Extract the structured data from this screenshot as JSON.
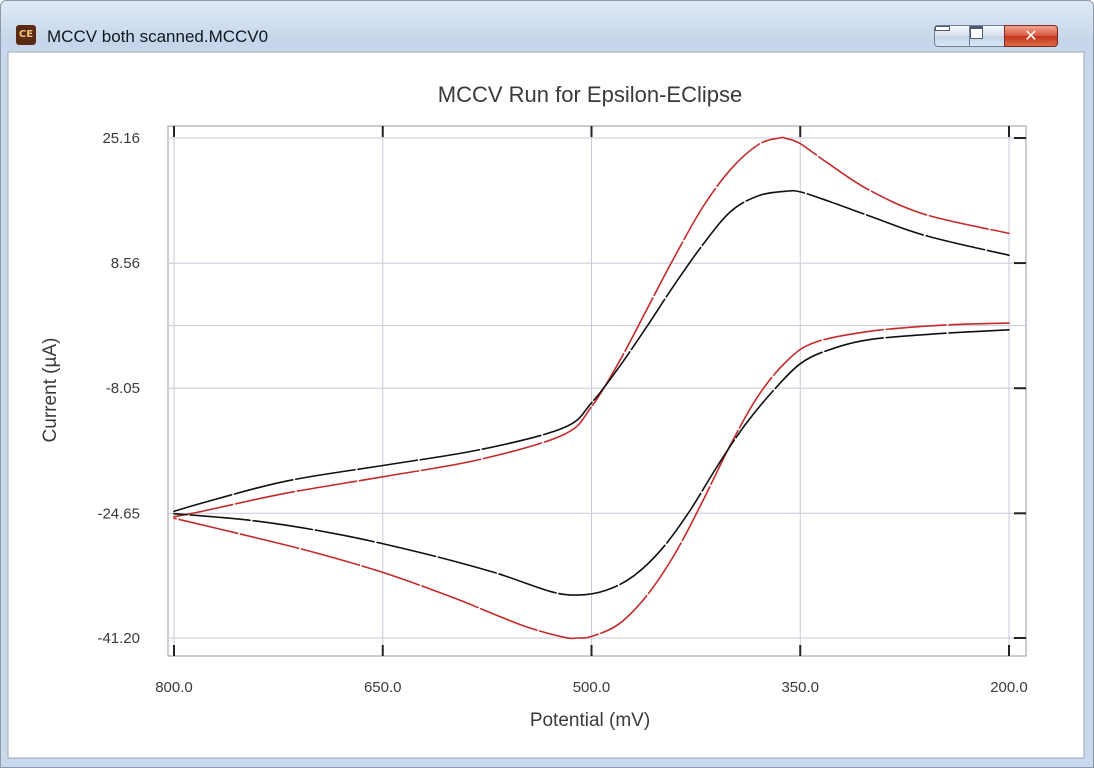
{
  "window": {
    "title": "MCCV  both scanned.MCCV0",
    "icon": "app-icon"
  },
  "chart_data": {
    "type": "line",
    "title": "MCCV Run for Epsilon-EClipse",
    "xlabel": "Potential (mV)",
    "ylabel": "Current (µA)",
    "xlim": [
      800,
      200
    ],
    "x_reversed": true,
    "ylim": [
      -41.2,
      25.16
    ],
    "xticks": [
      "800.0",
      "650.0",
      "500.0",
      "350.0",
      "200.0"
    ],
    "yticks": [
      "25.16",
      "8.56",
      "-8.05",
      "-24.65",
      "-41.20"
    ],
    "grid": true,
    "colors": {
      "red": "#c42a2a",
      "black": "#111111",
      "grid": "#c8c8d8"
    },
    "series": [
      {
        "color": "red",
        "forward": {
          "x": [
            800,
            780,
            720,
            650,
            580,
            520,
            500,
            480,
            460,
            440,
            420,
            400,
            380,
            365,
            360,
            350,
            330,
            300,
            260,
            200
          ],
          "y": [
            -25.1,
            -24.4,
            -22.0,
            -19.8,
            -17.5,
            -14.2,
            -10.5,
            -4.5,
            2.5,
            9.5,
            16.0,
            21.0,
            24.3,
            25.16,
            25.1,
            24.4,
            21.8,
            18.2,
            15.0,
            12.5
          ]
        },
        "reverse": {
          "x": [
            200,
            250,
            300,
            340,
            360,
            380,
            400,
            420,
            440,
            460,
            480,
            500,
            510,
            520,
            550,
            600,
            650,
            700,
            750,
            800
          ],
          "y": [
            0.6,
            0.3,
            -0.5,
            -2.0,
            -4.5,
            -9.0,
            -15.5,
            -23.0,
            -30.0,
            -35.5,
            -39.3,
            -41.0,
            -41.2,
            -41.1,
            -39.5,
            -35.8,
            -32.5,
            -29.8,
            -27.5,
            -25.3
          ]
        }
      },
      {
        "color": "black",
        "forward": {
          "x": [
            800,
            780,
            720,
            650,
            580,
            520,
            500,
            480,
            460,
            440,
            420,
            400,
            380,
            360,
            350,
            330,
            300,
            260,
            200
          ],
          "y": [
            -24.4,
            -23.3,
            -20.4,
            -18.3,
            -16.2,
            -13.3,
            -10.0,
            -5.2,
            0.2,
            5.8,
            11.0,
            15.4,
            17.5,
            18.1,
            18.0,
            16.8,
            14.8,
            12.2,
            9.6
          ]
        },
        "reverse": {
          "x": [
            200,
            250,
            300,
            330,
            350,
            370,
            390,
            410,
            430,
            450,
            470,
            490,
            510,
            530,
            570,
            620,
            680,
            740,
            800
          ],
          "y": [
            -0.3,
            -0.8,
            -1.6,
            -3.0,
            -4.8,
            -8.5,
            -13.0,
            -18.5,
            -24.5,
            -29.5,
            -33.0,
            -34.9,
            -35.5,
            -35.0,
            -32.5,
            -30.0,
            -27.5,
            -25.7,
            -24.7
          ]
        }
      }
    ]
  }
}
